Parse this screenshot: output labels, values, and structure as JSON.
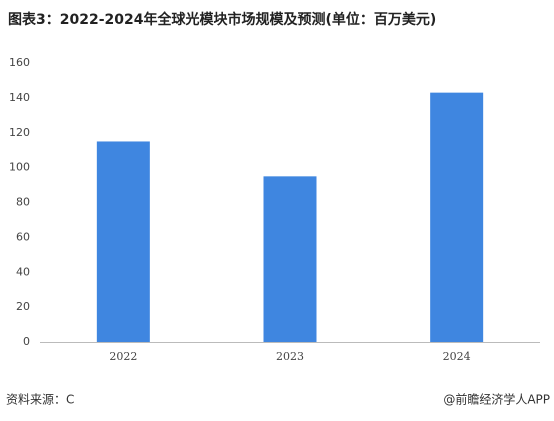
{
  "chart_data": {
    "type": "bar",
    "title": "图表3：2022-2024年全球光模块市场规模及预测(单位：百万美元)",
    "categories": [
      "2022",
      "2023",
      "2024"
    ],
    "values": [
      115,
      95,
      143
    ],
    "color": "#3f86e0",
    "ylim": [
      0,
      160
    ],
    "yticks": [
      0,
      20,
      40,
      60,
      80,
      100,
      120,
      140,
      160
    ],
    "grid": false,
    "source": "资料来源：C",
    "credit": "@前瞻经济学人APP"
  }
}
